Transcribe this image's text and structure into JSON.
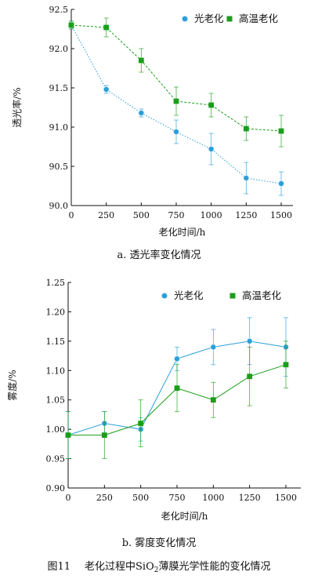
{
  "chart_data": [
    {
      "type": "line",
      "x": [
        0,
        250,
        500,
        750,
        1000,
        1250,
        1500
      ],
      "xlabel": "老化时间/h",
      "ylabel": "透光率/%",
      "xlim": [
        0,
        1500
      ],
      "ylim": [
        90.0,
        92.5
      ],
      "yticks": [
        90.0,
        90.5,
        91.0,
        91.5,
        92.0,
        92.5
      ],
      "xticks": [
        0,
        250,
        500,
        750,
        1000,
        1250,
        1500
      ],
      "legend": "top-right",
      "grid": false,
      "series": [
        {
          "name": "光老化",
          "color": "#2b9fd9",
          "marker": "circle",
          "line": "dotted",
          "values": [
            92.3,
            91.48,
            91.18,
            90.94,
            90.72,
            90.35,
            90.28
          ],
          "errors": [
            0.05,
            0.05,
            0.05,
            0.15,
            0.2,
            0.2,
            0.15
          ]
        },
        {
          "name": "高温老化",
          "color": "#1a9e1a",
          "marker": "square",
          "line": "dashed",
          "values": [
            92.3,
            92.27,
            91.85,
            91.33,
            91.28,
            90.98,
            90.95
          ],
          "errors": [
            0.05,
            0.12,
            0.15,
            0.18,
            0.15,
            0.15,
            0.2
          ]
        }
      ]
    },
    {
      "type": "line",
      "x": [
        0,
        250,
        500,
        750,
        1000,
        1250,
        1500
      ],
      "xlabel": "老化时间/h",
      "ylabel": "雾度/%",
      "xlim": [
        0,
        1500
      ],
      "ylim": [
        0.9,
        1.25
      ],
      "yticks": [
        0.9,
        0.95,
        1.0,
        1.05,
        1.1,
        1.15,
        1.2,
        1.25
      ],
      "xticks": [
        0,
        250,
        500,
        750,
        1000,
        1250,
        1500
      ],
      "legend": "top-right",
      "grid": false,
      "series": [
        {
          "name": "光老化",
          "color": "#2b9fd9",
          "marker": "circle",
          "line": "solid",
          "values": [
            0.99,
            1.01,
            1.0,
            1.12,
            1.14,
            1.15,
            1.14
          ],
          "errors": [
            0.04,
            0.02,
            0.02,
            0.02,
            0.03,
            0.04,
            0.05
          ]
        },
        {
          "name": "高温老化",
          "color": "#1a9e1a",
          "marker": "square",
          "line": "solid",
          "values": [
            0.99,
            0.99,
            1.01,
            1.07,
            1.05,
            1.09,
            1.11
          ],
          "errors": [
            0.04,
            0.04,
            0.04,
            0.04,
            0.03,
            0.05,
            0.04
          ]
        }
      ]
    }
  ],
  "captions": {
    "a": "a. 透光率变化情况",
    "b": "b. 雾度变化情况",
    "figure_label": "图11",
    "figure_title_pre": "老化过程中SiO",
    "figure_title_sub": "2",
    "figure_title_post": "薄膜光学性能的变化情况"
  }
}
